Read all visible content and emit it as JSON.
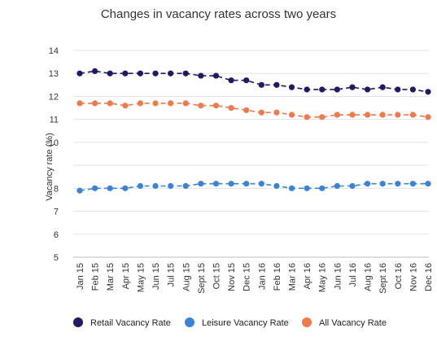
{
  "chart_data": {
    "type": "line",
    "title": "Changes in vacancy rates across two years",
    "xlabel": "",
    "ylabel": "Vacancy rate (%)",
    "ylim": [
      5,
      14
    ],
    "y_ticks": [
      5,
      6,
      7,
      8,
      10,
      11,
      12,
      13,
      14
    ],
    "grid": true,
    "legend_position": "bottom",
    "categories": [
      "Jan 15",
      "Feb 15",
      "Mar 15",
      "Apr 15",
      "May 15",
      "Jun 15",
      "Jul 15",
      "Aug 15",
      "Sept 15",
      "Oct 15",
      "Nov 15",
      "Dec 15",
      "Jan 16",
      "Feb 16",
      "Mar 16",
      "Apr 16",
      "May 16",
      "Jun 16",
      "Jul 16",
      "Aug 16",
      "Sept 16",
      "Oct 16",
      "Nov 16",
      "Dec 16"
    ],
    "series": [
      {
        "name": "Retail Vacancy Rate",
        "color": "#1f1a66",
        "values": [
          13.0,
          13.1,
          13.0,
          13.0,
          13.0,
          13.0,
          13.0,
          13.0,
          12.9,
          12.9,
          12.7,
          12.7,
          12.5,
          12.5,
          12.4,
          12.3,
          12.3,
          12.3,
          12.4,
          12.3,
          12.4,
          12.3,
          12.3,
          12.2
        ]
      },
      {
        "name": "Leisure Vacancy Rate",
        "color": "#3a84d6",
        "values": [
          7.9,
          8.0,
          8.0,
          8.0,
          8.1,
          8.1,
          8.1,
          8.1,
          8.2,
          8.2,
          8.2,
          8.2,
          8.2,
          8.1,
          8.0,
          8.0,
          8.0,
          8.1,
          8.1,
          8.2,
          8.2,
          8.2,
          8.2,
          8.2
        ]
      },
      {
        "name": "All Vacancy Rate",
        "color": "#ef7a4a",
        "values": [
          11.7,
          11.7,
          11.7,
          11.6,
          11.7,
          11.7,
          11.7,
          11.7,
          11.6,
          11.6,
          11.5,
          11.4,
          11.3,
          11.3,
          11.2,
          11.1,
          11.1,
          11.2,
          11.2,
          11.2,
          11.2,
          11.2,
          11.2,
          11.1
        ]
      }
    ]
  }
}
